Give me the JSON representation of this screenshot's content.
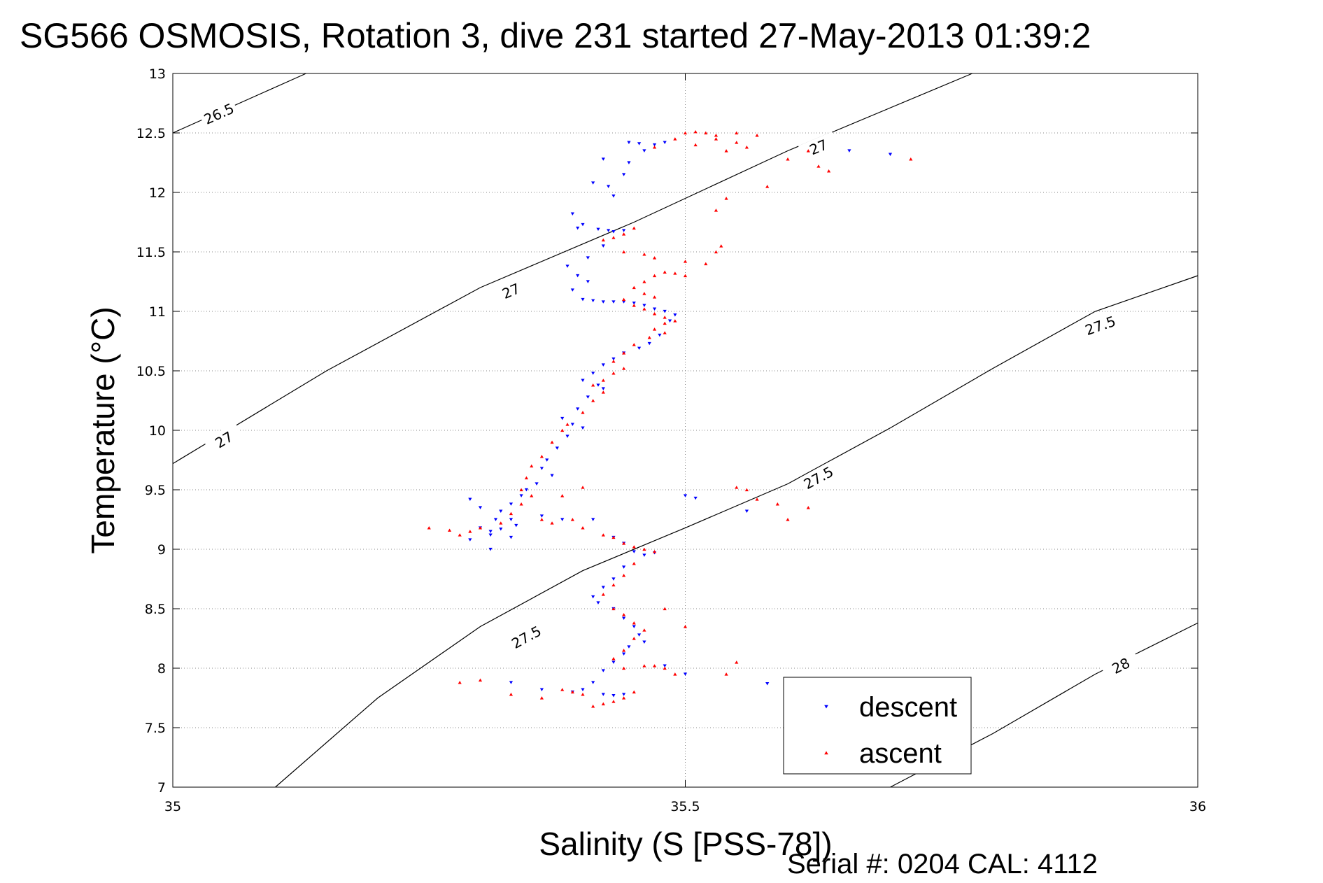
{
  "chart_data": {
    "type": "scatter",
    "title": "SG566 OSMOSIS, Rotation 3, dive 231 started 27-May-2013 01:39:2",
    "xlabel": "Salinity (S [PSS-78])",
    "ylabel": "Temperature (°C)",
    "xlim": [
      35,
      36
    ],
    "ylim": [
      7,
      13
    ],
    "x_ticks": [
      35,
      35.5,
      36
    ],
    "x_tick_labels": [
      "35",
      "35.5",
      "36"
    ],
    "y_ticks": [
      7,
      7.5,
      8,
      8.5,
      9,
      9.5,
      10,
      10.5,
      11,
      11.5,
      12,
      12.5,
      13
    ],
    "y_tick_labels": [
      "7",
      "7.5",
      "8",
      "8.5",
      "9",
      "9.5",
      "10",
      "10.5",
      "11",
      "11.5",
      "12",
      "12.5",
      "13"
    ],
    "grid": true,
    "legend_position": "bottom-right",
    "footer": "Serial #: 0204  CAL: 4112",
    "isopycnals": [
      {
        "label": "26.5",
        "points": [
          [
            35.0,
            12.5
          ],
          [
            35.13,
            13.0
          ]
        ],
        "labels_at": [
          [
            35.045,
            12.66
          ]
        ]
      },
      {
        "label": "27",
        "points": [
          [
            35.0,
            9.72
          ],
          [
            35.15,
            10.5
          ],
          [
            35.3,
            11.2
          ],
          [
            35.45,
            11.75
          ],
          [
            35.6,
            12.35
          ],
          [
            35.78,
            13.0
          ]
        ],
        "labels_at": [
          [
            35.05,
            9.92
          ],
          [
            35.33,
            11.17
          ],
          [
            35.63,
            12.38
          ]
        ]
      },
      {
        "label": "27.5",
        "points": [
          [
            35.1,
            7.0
          ],
          [
            35.2,
            7.75
          ],
          [
            35.3,
            8.35
          ],
          [
            35.4,
            8.82
          ],
          [
            35.5,
            9.18
          ],
          [
            35.6,
            9.55
          ],
          [
            35.7,
            10.02
          ],
          [
            35.8,
            10.52
          ],
          [
            35.9,
            11.0
          ],
          [
            36.0,
            11.3
          ]
        ],
        "labels_at": [
          [
            35.345,
            8.26
          ],
          [
            35.63,
            9.6
          ],
          [
            35.905,
            10.88
          ]
        ]
      },
      {
        "label": "28",
        "points": [
          [
            35.7,
            7.0
          ],
          [
            35.8,
            7.45
          ],
          [
            35.9,
            7.95
          ],
          [
            36.0,
            8.38
          ]
        ],
        "labels_at": [
          [
            35.925,
            8.02
          ]
        ]
      }
    ],
    "series": [
      {
        "name": "descent",
        "color": "#0000ff",
        "marker": "triangle-down",
        "points": [
          [
            35.445,
            12.42
          ],
          [
            35.455,
            12.41
          ],
          [
            35.47,
            12.4
          ],
          [
            35.48,
            12.42
          ],
          [
            35.46,
            12.35
          ],
          [
            35.445,
            12.25
          ],
          [
            35.44,
            12.15
          ],
          [
            35.42,
            12.28
          ],
          [
            35.41,
            12.08
          ],
          [
            35.425,
            12.05
          ],
          [
            35.43,
            11.97
          ],
          [
            35.39,
            11.82
          ],
          [
            35.395,
            11.7
          ],
          [
            35.4,
            11.73
          ],
          [
            35.415,
            11.69
          ],
          [
            35.425,
            11.68
          ],
          [
            35.43,
            11.67
          ],
          [
            35.44,
            11.68
          ],
          [
            35.42,
            11.55
          ],
          [
            35.405,
            11.45
          ],
          [
            35.385,
            11.38
          ],
          [
            35.395,
            11.3
          ],
          [
            35.405,
            11.25
          ],
          [
            35.39,
            11.18
          ],
          [
            35.4,
            11.1
          ],
          [
            35.41,
            11.09
          ],
          [
            35.42,
            11.08
          ],
          [
            35.43,
            11.08
          ],
          [
            35.44,
            11.08
          ],
          [
            35.45,
            11.07
          ],
          [
            35.46,
            11.05
          ],
          [
            35.47,
            11.02
          ],
          [
            35.48,
            11.0
          ],
          [
            35.49,
            10.97
          ],
          [
            35.485,
            10.92
          ],
          [
            35.475,
            10.8
          ],
          [
            35.465,
            10.73
          ],
          [
            35.455,
            10.69
          ],
          [
            35.44,
            10.65
          ],
          [
            35.43,
            10.6
          ],
          [
            35.42,
            10.55
          ],
          [
            35.41,
            10.48
          ],
          [
            35.4,
            10.42
          ],
          [
            35.415,
            10.38
          ],
          [
            35.42,
            10.35
          ],
          [
            35.405,
            10.28
          ],
          [
            35.395,
            10.18
          ],
          [
            35.38,
            10.1
          ],
          [
            35.39,
            10.05
          ],
          [
            35.4,
            10.02
          ],
          [
            35.385,
            9.95
          ],
          [
            35.375,
            9.85
          ],
          [
            35.365,
            9.75
          ],
          [
            35.36,
            9.68
          ],
          [
            35.37,
            9.62
          ],
          [
            35.355,
            9.55
          ],
          [
            35.345,
            9.5
          ],
          [
            35.34,
            9.45
          ],
          [
            35.33,
            9.38
          ],
          [
            35.32,
            9.32
          ],
          [
            35.33,
            9.25
          ],
          [
            35.335,
            9.2
          ],
          [
            35.32,
            9.17
          ],
          [
            35.31,
            9.15
          ],
          [
            35.3,
            9.18
          ],
          [
            35.31,
            9.12
          ],
          [
            35.33,
            9.1
          ],
          [
            35.36,
            9.28
          ],
          [
            35.38,
            9.25
          ],
          [
            35.41,
            9.25
          ],
          [
            35.43,
            9.1
          ],
          [
            35.44,
            9.05
          ],
          [
            35.45,
            8.98
          ],
          [
            35.46,
            8.95
          ],
          [
            35.47,
            8.97
          ],
          [
            35.44,
            8.85
          ],
          [
            35.43,
            8.75
          ],
          [
            35.42,
            8.68
          ],
          [
            35.41,
            8.6
          ],
          [
            35.415,
            8.55
          ],
          [
            35.43,
            8.5
          ],
          [
            35.44,
            8.42
          ],
          [
            35.45,
            8.35
          ],
          [
            35.455,
            8.28
          ],
          [
            35.46,
            8.22
          ],
          [
            35.445,
            8.18
          ],
          [
            35.44,
            8.12
          ],
          [
            35.43,
            8.05
          ],
          [
            35.42,
            7.98
          ],
          [
            35.41,
            7.88
          ],
          [
            35.4,
            7.82
          ],
          [
            35.42,
            7.78
          ],
          [
            35.43,
            7.77
          ],
          [
            35.44,
            7.78
          ],
          [
            35.39,
            7.8
          ],
          [
            35.36,
            7.82
          ],
          [
            35.33,
            7.88
          ],
          [
            35.48,
            8.02
          ],
          [
            35.5,
            7.95
          ],
          [
            35.58,
            7.87
          ],
          [
            35.29,
            9.42
          ],
          [
            35.3,
            9.35
          ],
          [
            35.315,
            9.25
          ],
          [
            35.56,
            9.32
          ],
          [
            35.5,
            9.45
          ],
          [
            35.51,
            9.43
          ],
          [
            35.66,
            12.35
          ],
          [
            35.7,
            12.32
          ],
          [
            35.31,
            9.0
          ],
          [
            35.29,
            9.08
          ]
        ]
      },
      {
        "name": "ascent",
        "color": "#ff0000",
        "marker": "triangle-up",
        "points": [
          [
            35.5,
            12.5
          ],
          [
            35.51,
            12.51
          ],
          [
            35.52,
            12.5
          ],
          [
            35.53,
            12.48
          ],
          [
            35.55,
            12.42
          ],
          [
            35.56,
            12.38
          ],
          [
            35.54,
            12.35
          ],
          [
            35.53,
            12.45
          ],
          [
            35.49,
            12.45
          ],
          [
            35.47,
            12.38
          ],
          [
            35.6,
            12.28
          ],
          [
            35.63,
            12.22
          ],
          [
            35.72,
            12.28
          ],
          [
            35.58,
            12.05
          ],
          [
            35.54,
            11.95
          ],
          [
            35.53,
            11.85
          ],
          [
            35.45,
            11.7
          ],
          [
            35.44,
            11.65
          ],
          [
            35.43,
            11.62
          ],
          [
            35.42,
            11.6
          ],
          [
            35.44,
            11.5
          ],
          [
            35.46,
            11.48
          ],
          [
            35.47,
            11.45
          ],
          [
            35.5,
            11.42
          ],
          [
            35.52,
            11.4
          ],
          [
            35.53,
            11.5
          ],
          [
            35.535,
            11.55
          ],
          [
            35.5,
            11.3
          ],
          [
            35.49,
            11.32
          ],
          [
            35.48,
            11.33
          ],
          [
            35.47,
            11.3
          ],
          [
            35.46,
            11.25
          ],
          [
            35.45,
            11.2
          ],
          [
            35.46,
            11.15
          ],
          [
            35.47,
            11.12
          ],
          [
            35.44,
            11.1
          ],
          [
            35.45,
            11.05
          ],
          [
            35.46,
            11.02
          ],
          [
            35.47,
            10.98
          ],
          [
            35.48,
            10.95
          ],
          [
            35.49,
            10.92
          ],
          [
            35.48,
            10.9
          ],
          [
            35.47,
            10.85
          ],
          [
            35.48,
            10.82
          ],
          [
            35.465,
            10.78
          ],
          [
            35.45,
            10.72
          ],
          [
            35.44,
            10.65
          ],
          [
            35.43,
            10.58
          ],
          [
            35.44,
            10.52
          ],
          [
            35.43,
            10.48
          ],
          [
            35.42,
            10.42
          ],
          [
            35.41,
            10.38
          ],
          [
            35.42,
            10.32
          ],
          [
            35.41,
            10.25
          ],
          [
            35.4,
            10.15
          ],
          [
            35.385,
            10.05
          ],
          [
            35.38,
            10.0
          ],
          [
            35.37,
            9.9
          ],
          [
            35.36,
            9.78
          ],
          [
            35.35,
            9.7
          ],
          [
            35.345,
            9.6
          ],
          [
            35.34,
            9.5
          ],
          [
            35.35,
            9.45
          ],
          [
            35.33,
            9.3
          ],
          [
            35.32,
            9.22
          ],
          [
            35.3,
            9.18
          ],
          [
            35.29,
            9.15
          ],
          [
            35.28,
            9.12
          ],
          [
            35.27,
            9.16
          ],
          [
            35.36,
            9.25
          ],
          [
            35.37,
            9.22
          ],
          [
            35.39,
            9.25
          ],
          [
            35.4,
            9.18
          ],
          [
            35.42,
            9.12
          ],
          [
            35.43,
            9.1
          ],
          [
            35.44,
            9.05
          ],
          [
            35.45,
            9.02
          ],
          [
            35.46,
            9.0
          ],
          [
            35.47,
            8.98
          ],
          [
            35.45,
            8.88
          ],
          [
            35.44,
            8.78
          ],
          [
            35.43,
            8.7
          ],
          [
            35.42,
            8.62
          ],
          [
            35.43,
            8.5
          ],
          [
            35.44,
            8.45
          ],
          [
            35.45,
            8.38
          ],
          [
            35.46,
            8.32
          ],
          [
            35.45,
            8.25
          ],
          [
            35.44,
            8.15
          ],
          [
            35.43,
            8.08
          ],
          [
            35.44,
            8.0
          ],
          [
            35.46,
            8.02
          ],
          [
            35.47,
            8.02
          ],
          [
            35.48,
            8.0
          ],
          [
            35.49,
            7.95
          ],
          [
            35.45,
            7.8
          ],
          [
            35.44,
            7.75
          ],
          [
            35.43,
            7.72
          ],
          [
            35.42,
            7.7
          ],
          [
            35.41,
            7.68
          ],
          [
            35.4,
            7.78
          ],
          [
            35.39,
            7.8
          ],
          [
            35.38,
            7.82
          ],
          [
            35.36,
            7.75
          ],
          [
            35.48,
            8.5
          ],
          [
            35.5,
            8.35
          ],
          [
            35.55,
            8.05
          ],
          [
            35.54,
            7.95
          ],
          [
            35.3,
            7.9
          ],
          [
            35.33,
            7.78
          ],
          [
            35.28,
            7.88
          ],
          [
            35.55,
            9.52
          ],
          [
            35.57,
            9.42
          ],
          [
            35.59,
            9.38
          ],
          [
            35.62,
            9.35
          ],
          [
            35.6,
            9.25
          ],
          [
            35.56,
            9.5
          ],
          [
            35.62,
            12.35
          ],
          [
            35.64,
            12.18
          ],
          [
            35.4,
            9.52
          ],
          [
            35.38,
            9.45
          ],
          [
            35.34,
            9.38
          ],
          [
            35.25,
            9.18
          ],
          [
            35.57,
            12.48
          ],
          [
            35.55,
            12.5
          ],
          [
            35.51,
            12.4
          ]
        ]
      }
    ]
  }
}
